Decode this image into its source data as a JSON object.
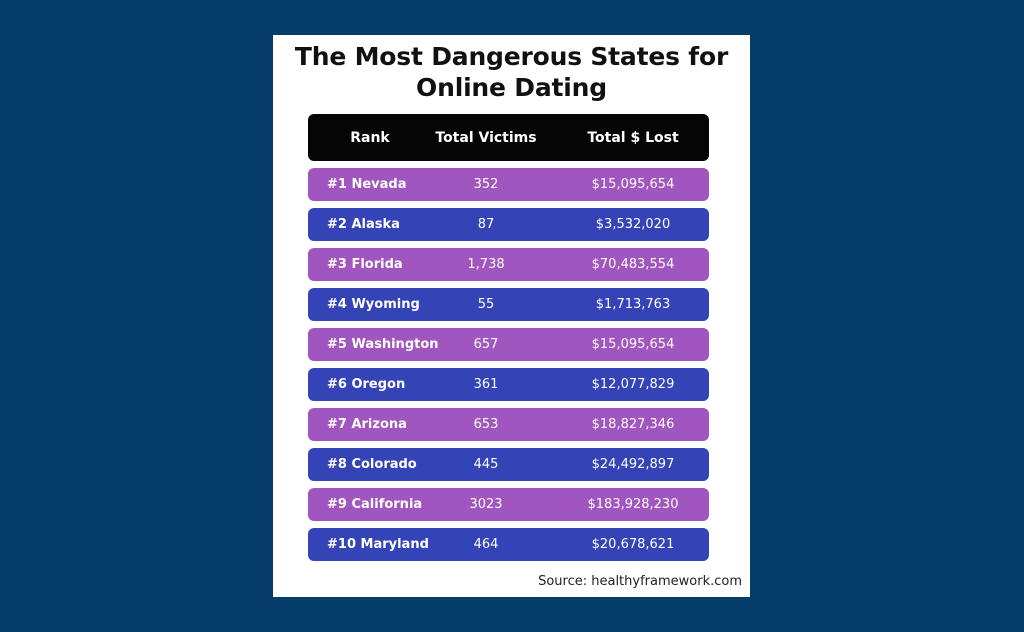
{
  "chart_data": {
    "type": "table",
    "title_lines": [
      "The Most Dangerous States for",
      "Online Dating"
    ],
    "columns": [
      "Rank",
      "Total Victims",
      "Total $ Lost"
    ],
    "rows": [
      {
        "rank": "#1 Nevada",
        "victims": "352",
        "lost": "$15,095,654"
      },
      {
        "rank": "#2 Alaska",
        "victims": "87",
        "lost": "$3,532,020"
      },
      {
        "rank": "#3 Florida",
        "victims": "1,738",
        "lost": "$70,483,554"
      },
      {
        "rank": "#4 Wyoming",
        "victims": "55",
        "lost": "$1,713,763"
      },
      {
        "rank": "#5 Washington",
        "victims": "657",
        "lost": "$15,095,654"
      },
      {
        "rank": "#6 Oregon",
        "victims": "361",
        "lost": "$12,077,829"
      },
      {
        "rank": "#7 Arizona",
        "victims": "653",
        "lost": "$18,827,346"
      },
      {
        "rank": "#8 Colorado",
        "victims": "445",
        "lost": "$24,492,897"
      },
      {
        "rank": "#9 California",
        "victims": "3023",
        "lost": "$183,928,230"
      },
      {
        "rank": "#10 Maryland",
        "victims": "464",
        "lost": "$20,678,621"
      }
    ],
    "source": "Source: healthyframework.com"
  },
  "colors": {
    "background": "#043e68",
    "card": "#ffffff",
    "header": "#050505",
    "row_odd": "#a155be",
    "row_even": "#3444b7"
  }
}
